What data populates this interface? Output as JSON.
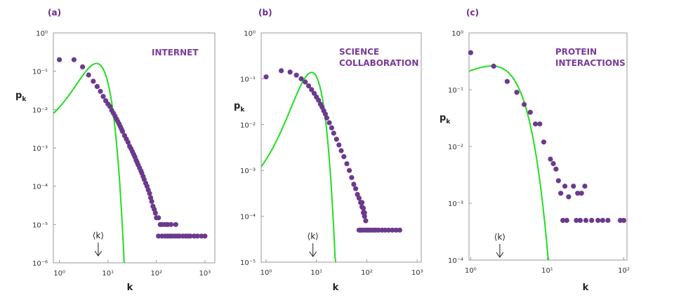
{
  "chart_data": [
    {
      "type": "scatter",
      "panel_label": "(a)",
      "title": "INTERNET",
      "xlabel": "k",
      "ylabel": "p",
      "ylabel_sub": "k",
      "mean_label": "⟨k⟩",
      "xscale": "log",
      "yscale": "log",
      "xlim": [
        0.75,
        1600
      ],
      "ylim": [
        1e-06,
        1
      ],
      "xticks": [
        {
          "value": 1,
          "label": "10⁰"
        },
        {
          "value": 10,
          "label": "10¹"
        },
        {
          "value": 100,
          "label": "10²"
        },
        {
          "value": 1000,
          "label": "10³"
        }
      ],
      "yticks": [
        {
          "value": 1,
          "label": "10⁰"
        },
        {
          "value": 0.1,
          "label": "10⁻¹"
        },
        {
          "value": 0.01,
          "label": "10⁻²"
        },
        {
          "value": 0.001,
          "label": "10⁻³"
        },
        {
          "value": 0.0001,
          "label": "10⁻⁴"
        },
        {
          "value": 1e-05,
          "label": "10⁻⁵"
        },
        {
          "value": 1e-06,
          "label": "10⁻⁶"
        }
      ],
      "mean_k": 6.3,
      "poisson_lambda": 6.3,
      "points": [
        [
          1,
          0.2
        ],
        [
          2,
          0.2
        ],
        [
          3,
          0.13
        ],
        [
          4,
          0.08
        ],
        [
          5,
          0.055
        ],
        [
          6,
          0.04
        ],
        [
          7,
          0.03
        ],
        [
          8,
          0.022
        ],
        [
          9,
          0.017
        ],
        [
          10,
          0.014
        ],
        [
          11,
          0.012
        ],
        [
          12,
          0.0095
        ],
        [
          13,
          0.008
        ],
        [
          14,
          0.0068
        ],
        [
          15,
          0.0057
        ],
        [
          16,
          0.0049
        ],
        [
          17,
          0.0042
        ],
        [
          18,
          0.0036
        ],
        [
          19,
          0.0031
        ],
        [
          20,
          0.0027
        ],
        [
          22,
          0.0021
        ],
        [
          24,
          0.0017
        ],
        [
          26,
          0.0014
        ],
        [
          28,
          0.0011
        ],
        [
          30,
          0.00095
        ],
        [
          32,
          0.0008
        ],
        [
          34,
          0.00068
        ],
        [
          36,
          0.00058
        ],
        [
          38,
          0.00048
        ],
        [
          40,
          0.00042
        ],
        [
          42,
          0.00036
        ],
        [
          45,
          0.0003
        ],
        [
          48,
          0.00025
        ],
        [
          50,
          0.00022
        ],
        [
          53,
          0.00018
        ],
        [
          56,
          0.00015
        ],
        [
          60,
          0.00012
        ],
        [
          64,
          0.0001
        ],
        [
          68,
          8e-05
        ],
        [
          72,
          6.5e-05
        ],
        [
          76,
          5e-05
        ],
        [
          80,
          4e-05
        ],
        [
          85,
          3e-05
        ],
        [
          90,
          2.5e-05
        ],
        [
          95,
          2e-05
        ],
        [
          100,
          1.5e-05
        ],
        [
          110,
          1.5e-05
        ],
        [
          120,
          1e-05
        ],
        [
          130,
          1e-05
        ],
        [
          150,
          1e-05
        ],
        [
          170,
          1e-05
        ],
        [
          200,
          1e-05
        ],
        [
          250,
          1e-05
        ],
        [
          110,
          5e-06
        ],
        [
          130,
          5e-06
        ],
        [
          150,
          5e-06
        ],
        [
          170,
          5e-06
        ],
        [
          190,
          5e-06
        ],
        [
          210,
          5e-06
        ],
        [
          240,
          5e-06
        ],
        [
          270,
          5e-06
        ],
        [
          300,
          5e-06
        ],
        [
          350,
          5e-06
        ],
        [
          400,
          5e-06
        ],
        [
          450,
          5e-06
        ],
        [
          500,
          5e-06
        ],
        [
          600,
          5e-06
        ],
        [
          700,
          5e-06
        ],
        [
          850,
          5e-06
        ],
        [
          1000,
          5e-06
        ]
      ]
    },
    {
      "type": "scatter",
      "panel_label": "(b)",
      "title": "SCIENCE COLLABORATION",
      "title_lines": [
        "SCIENCE",
        "COLLABORATION"
      ],
      "xlabel": "k",
      "ylabel": "p",
      "ylabel_sub": "k",
      "mean_label": "⟨k⟩",
      "xscale": "log",
      "yscale": "log",
      "xlim": [
        0.8,
        1200
      ],
      "ylim": [
        1e-05,
        1
      ],
      "xticks": [
        {
          "value": 1,
          "label": "10⁰"
        },
        {
          "value": 10,
          "label": "10¹"
        },
        {
          "value": 100,
          "label": "10²"
        },
        {
          "value": 1000,
          "label": "10³"
        }
      ],
      "yticks": [
        {
          "value": 1,
          "label": "10⁰"
        },
        {
          "value": 0.1,
          "label": "10⁻¹"
        },
        {
          "value": 0.01,
          "label": "10⁻²"
        },
        {
          "value": 0.001,
          "label": "10⁻³"
        },
        {
          "value": 0.0001,
          "label": "10⁻⁴"
        },
        {
          "value": 1e-05,
          "label": "10⁻⁵"
        }
      ],
      "mean_k": 8.5,
      "poisson_lambda": 8.5,
      "points": [
        [
          1,
          0.11
        ],
        [
          2,
          0.15
        ],
        [
          3,
          0.14
        ],
        [
          4,
          0.12
        ],
        [
          5,
          0.1
        ],
        [
          6,
          0.085
        ],
        [
          7,
          0.07
        ],
        [
          8,
          0.058
        ],
        [
          9,
          0.048
        ],
        [
          10,
          0.04
        ],
        [
          11,
          0.034
        ],
        [
          12,
          0.028
        ],
        [
          13,
          0.024
        ],
        [
          14,
          0.02
        ],
        [
          15,
          0.017
        ],
        [
          16,
          0.014
        ],
        [
          18,
          0.011
        ],
        [
          20,
          0.0085
        ],
        [
          22,
          0.0065
        ],
        [
          25,
          0.0048
        ],
        [
          28,
          0.0036
        ],
        [
          31,
          0.0027
        ],
        [
          35,
          0.002
        ],
        [
          40,
          0.0014
        ],
        [
          45,
          0.001
        ],
        [
          50,
          0.0007
        ],
        [
          55,
          0.0005
        ],
        [
          60,
          0.0004
        ],
        [
          65,
          0.0003
        ],
        [
          70,
          0.00025
        ],
        [
          75,
          0.0002
        ],
        [
          80,
          0.00016
        ],
        [
          85,
          0.00012
        ],
        [
          90,
          0.0001
        ],
        [
          95,
          8e-05
        ],
        [
          80,
          0.0002
        ],
        [
          85,
          0.00015
        ],
        [
          90,
          0.00012
        ],
        [
          70,
          5e-05
        ],
        [
          75,
          5e-05
        ],
        [
          80,
          5e-05
        ],
        [
          90,
          5e-05
        ],
        [
          100,
          5e-05
        ],
        [
          110,
          5e-05
        ],
        [
          120,
          5e-05
        ],
        [
          135,
          5e-05
        ],
        [
          150,
          5e-05
        ],
        [
          170,
          5e-05
        ],
        [
          200,
          5e-05
        ],
        [
          230,
          5e-05
        ],
        [
          270,
          5e-05
        ],
        [
          320,
          5e-05
        ],
        [
          380,
          5e-05
        ],
        [
          450,
          5e-05
        ]
      ]
    },
    {
      "type": "scatter",
      "panel_label": "(c)",
      "title": "PROTEIN INTERACTIONS",
      "title_lines": [
        "PROTEIN",
        "INTERACTIONS"
      ],
      "xlabel": "k",
      "ylabel": "p",
      "ylabel_sub": "k",
      "mean_label": "⟨k⟩",
      "xscale": "log",
      "yscale": "log",
      "xlim": [
        0.95,
        110
      ],
      "ylim": [
        0.0001,
        1
      ],
      "xticks": [
        {
          "value": 1,
          "label": "10⁰"
        },
        {
          "value": 10,
          "label": "10¹"
        },
        {
          "value": 100,
          "label": "10²"
        }
      ],
      "yticks": [
        {
          "value": 1,
          "label": "10⁰"
        },
        {
          "value": 0.1,
          "label": "10⁻¹"
        },
        {
          "value": 0.01,
          "label": "10⁻²"
        },
        {
          "value": 0.001,
          "label": "10⁻³"
        },
        {
          "value": 0.0001,
          "label": "10⁻⁴"
        }
      ],
      "mean_k": 2.4,
      "poisson_lambda": 2.4,
      "points": [
        [
          1,
          0.45
        ],
        [
          2,
          0.26
        ],
        [
          3,
          0.14
        ],
        [
          4,
          0.09
        ],
        [
          5,
          0.055
        ],
        [
          6,
          0.04
        ],
        [
          7,
          0.025
        ],
        [
          8,
          0.025
        ],
        [
          9,
          0.012
        ],
        [
          11,
          0.006
        ],
        [
          12,
          0.005
        ],
        [
          13,
          0.004
        ],
        [
          14,
          0.0025
        ],
        [
          15,
          0.0015
        ],
        [
          17,
          0.002
        ],
        [
          19,
          0.0013
        ],
        [
          22,
          0.002
        ],
        [
          25,
          0.0015
        ],
        [
          28,
          0.0015
        ],
        [
          31,
          0.002
        ],
        [
          16,
          0.0005
        ],
        [
          18,
          0.0005
        ],
        [
          24,
          0.0005
        ],
        [
          27,
          0.0005
        ],
        [
          32,
          0.0005
        ],
        [
          38,
          0.0005
        ],
        [
          46,
          0.0005
        ],
        [
          53,
          0.0005
        ],
        [
          62,
          0.0005
        ],
        [
          90,
          0.0005
        ],
        [
          100,
          0.0005
        ]
      ]
    }
  ]
}
